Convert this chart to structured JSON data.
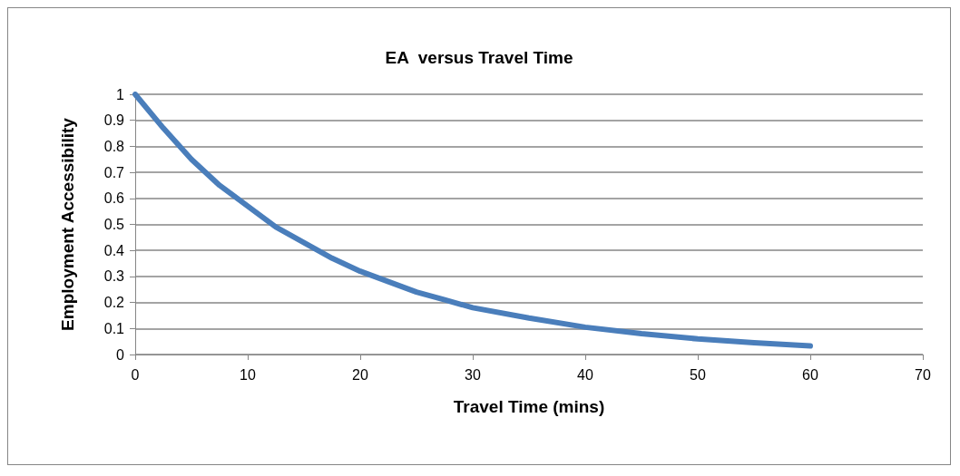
{
  "chart_data": {
    "type": "line",
    "title": "EA  versus Travel Time",
    "xlabel": "Travel Time (mins)",
    "ylabel": "Employment Accessibility",
    "x": [
      0,
      2.5,
      5,
      7.5,
      10,
      12.5,
      15,
      17.5,
      20,
      22.5,
      25,
      27.5,
      30,
      35,
      40,
      45,
      50,
      55,
      60
    ],
    "series": [
      {
        "color": "#4a7ebb",
        "values": [
          1,
          0.87,
          0.75,
          0.65,
          0.57,
          0.49,
          0.43,
          0.37,
          0.32,
          0.28,
          0.24,
          0.21,
          0.18,
          0.14,
          0.105,
          0.08,
          0.06,
          0.045,
          0.033
        ]
      }
    ],
    "xlim": [
      0,
      70
    ],
    "xticks": [
      0,
      10,
      20,
      30,
      40,
      50,
      60,
      70
    ],
    "ylim": [
      0,
      1
    ],
    "yticks": [
      0,
      0.1,
      0.2,
      0.3,
      0.4,
      0.5,
      0.6,
      0.7,
      0.8,
      0.9,
      1
    ],
    "grid": "y",
    "marker": "none",
    "line_style": "solid"
  }
}
